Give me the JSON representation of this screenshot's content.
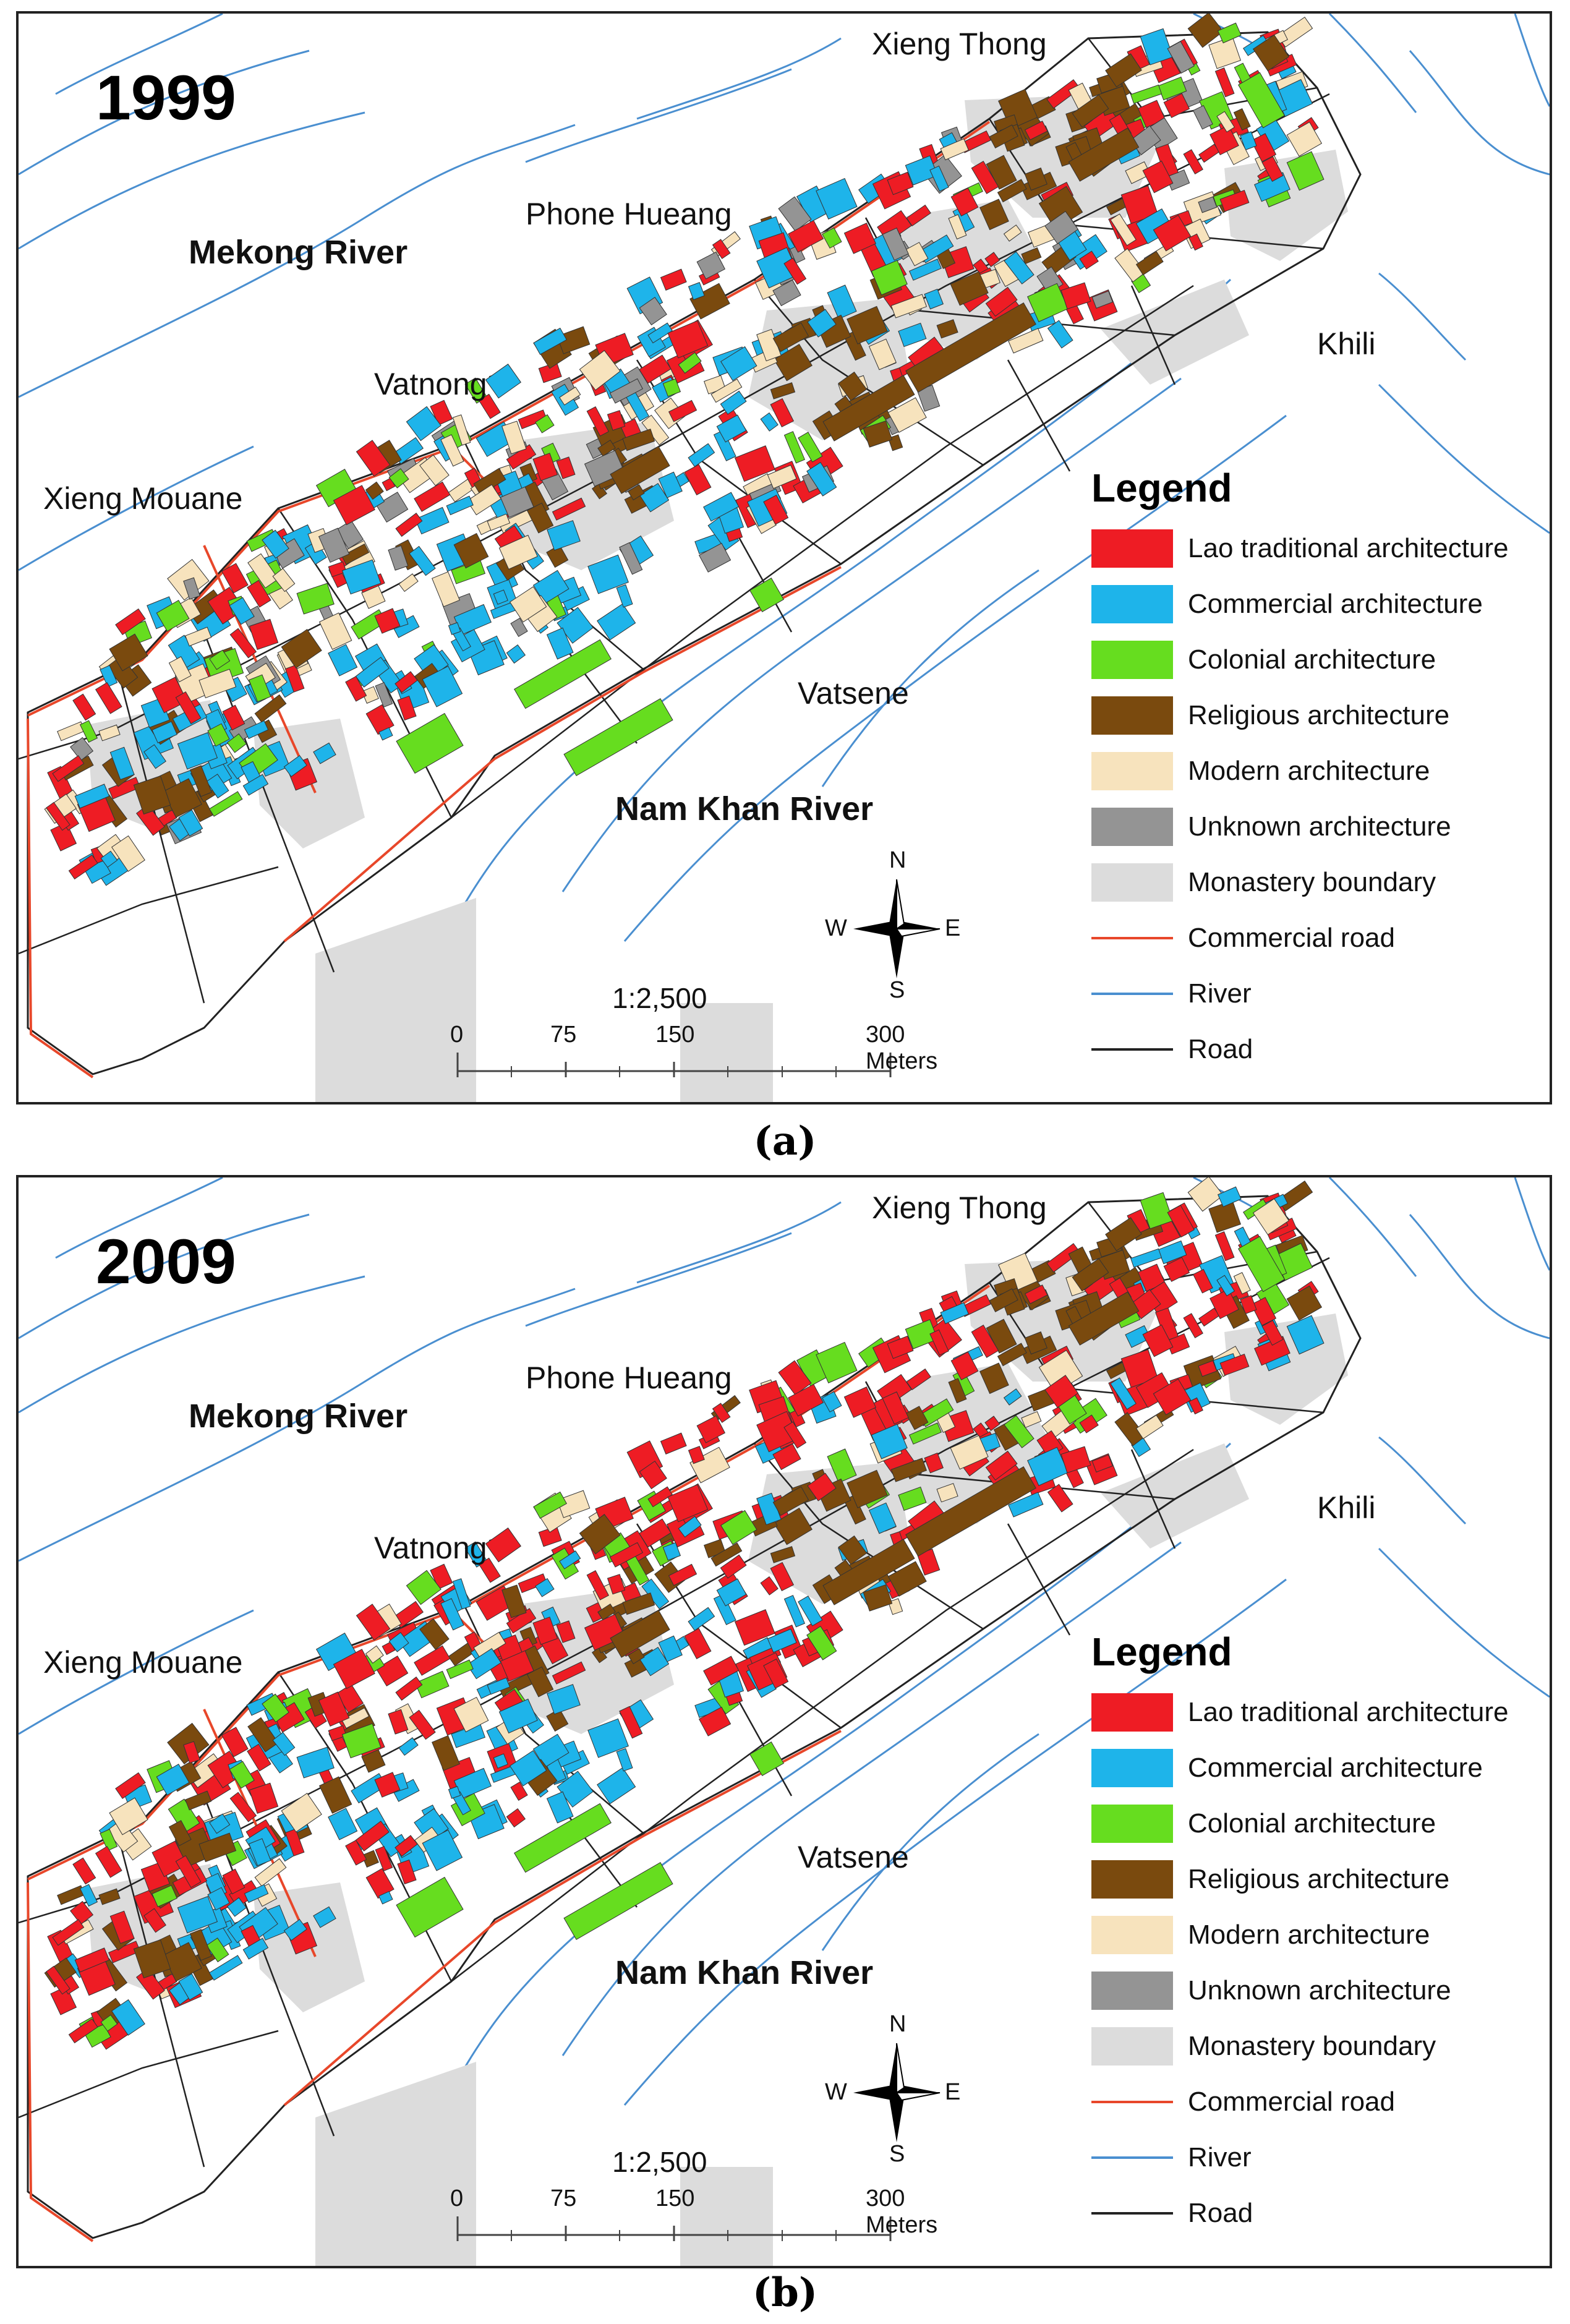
{
  "panels": [
    {
      "year": "1999",
      "caption": "(a)",
      "labels": {
        "mekong": "Mekong River",
        "nam_khan": "Nam Khan River",
        "xieng_thong": "Xieng Thong",
        "phone_hueang": "Phone Hueang",
        "vatnong": "Vatnong",
        "xieng_mouane": "Xieng Mouane",
        "vatsene": "Vatsene",
        "khili": "Khili"
      }
    },
    {
      "year": "2009",
      "caption": "(b)",
      "labels": {
        "mekong": "Mekong River",
        "nam_khan": "Nam Khan River",
        "xieng_thong": "Xieng Thong",
        "phone_hueang": "Phone Hueang",
        "vatnong": "Vatnong",
        "xieng_mouane": "Xieng Mouane",
        "vatsene": "Vatsene",
        "khili": "Khili"
      }
    }
  ],
  "legend": {
    "title": "Legend",
    "items": [
      {
        "label": "Lao traditional architecture",
        "color": "#ee1c24",
        "kind": "fill"
      },
      {
        "label": "Commercial architecture",
        "color": "#1eb4ea",
        "kind": "fill"
      },
      {
        "label": "Colonial architecture",
        "color": "#66dd1f",
        "kind": "fill"
      },
      {
        "label": "Religious architecture",
        "color": "#7a4a0e",
        "kind": "fill"
      },
      {
        "label": "Modern architecture",
        "color": "#f7e3bd",
        "kind": "fill"
      },
      {
        "label": "Unknown architecture",
        "color": "#949494",
        "kind": "fill"
      },
      {
        "label": "Monastery boundary",
        "color": "#dcdcdc",
        "kind": "fill"
      },
      {
        "label": "Commercial road",
        "color": "#e8472a",
        "kind": "line"
      },
      {
        "label": "River",
        "color": "#4a8fd0",
        "kind": "line"
      },
      {
        "label": "Road",
        "color": "#222222",
        "kind": "line"
      }
    ]
  },
  "scale": {
    "ratio": "1:2,500",
    "ticks": [
      "0",
      "75",
      "150",
      "300 Meters"
    ]
  },
  "compass": {
    "n": "N",
    "s": "S",
    "e": "E",
    "w": "W"
  }
}
